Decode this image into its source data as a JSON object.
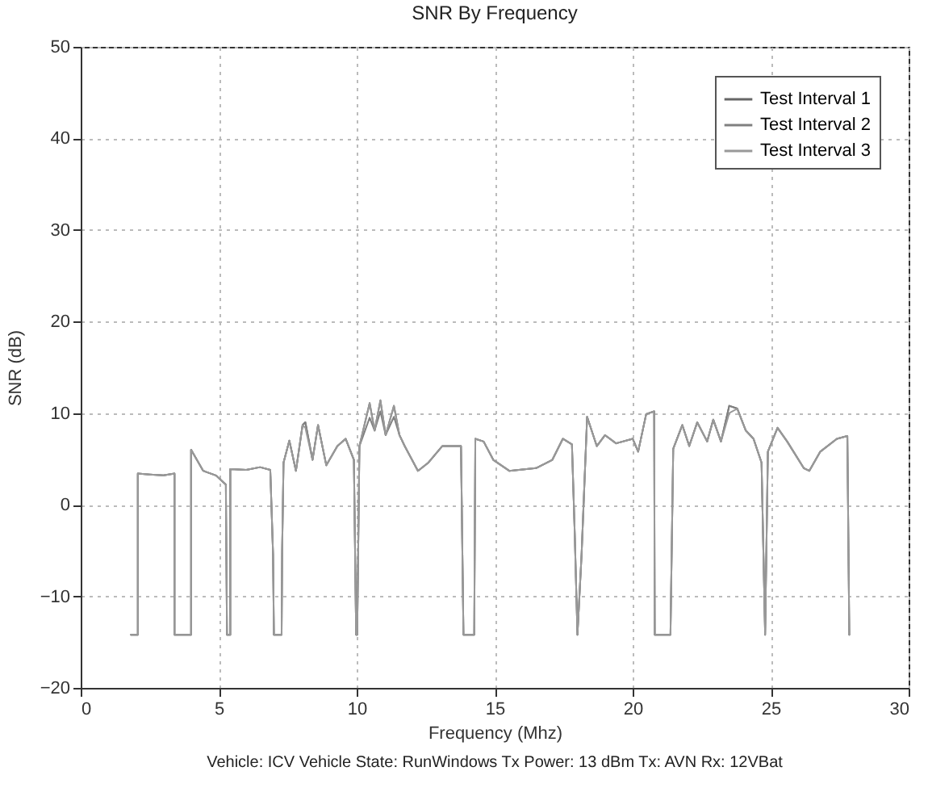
{
  "chart_data": {
    "type": "line",
    "title": "SNR By Frequency",
    "xlabel": "Frequency (Mhz)",
    "ylabel": "SNR (dB)",
    "annotations": [
      "Vehicle: ICV   Vehicle State: RunWindows   Tx Power: 13 dBm   Tx: AVN   Rx: 12VBat"
    ],
    "x": [
      1.82,
      2.07,
      2.07,
      2.5,
      3.0,
      3.4,
      3.4,
      4.0,
      4.0,
      4.44,
      4.9,
      5.26,
      5.3,
      5.42,
      5.42,
      6.0,
      6.5,
      6.87,
      6.97,
      7.0,
      7.28,
      7.3,
      7.35,
      7.56,
      7.8,
      8.04,
      8.14,
      8.4,
      8.6,
      8.9,
      9.3,
      9.6,
      9.9,
      9.98,
      10.02,
      10.1,
      10.47,
      10.65,
      10.86,
      11.05,
      11.35,
      11.55,
      11.74,
      12.22,
      12.6,
      13.1,
      13.78,
      13.87,
      14.26,
      14.3,
      14.6,
      14.95,
      15.53,
      16.5,
      17.09,
      17.47,
      17.8,
      17.9,
      18.0,
      18.15,
      18.35,
      18.7,
      19.0,
      19.4,
      20.0,
      20.2,
      20.49,
      20.78,
      20.8,
      21.37,
      21.47,
      21.8,
      22.05,
      22.34,
      22.7,
      22.92,
      23.2,
      23.5,
      23.79,
      24.1,
      24.38,
      24.67,
      24.8,
      24.9,
      25.25,
      25.6,
      26.2,
      26.4,
      26.8,
      27.4,
      27.78,
      27.85
    ],
    "series": [
      {
        "name": "Test Interval 1",
        "color": "#666666",
        "values": [
          -14.2,
          -14.2,
          3.4,
          3.3,
          3.2,
          3.4,
          -14.2,
          -14.2,
          6.0,
          3.7,
          3.2,
          2.2,
          -14.2,
          -14.2,
          3.9,
          3.8,
          4.1,
          3.8,
          -5.4,
          -14.2,
          -14.2,
          -5,
          4.6,
          7.0,
          3.7,
          8.7,
          9.0,
          4.9,
          8.7,
          4.3,
          6.4,
          7.2,
          4.9,
          -14.2,
          -14.2,
          6.4,
          11.1,
          8.1,
          11.4,
          7.6,
          10.8,
          7.6,
          6.4,
          3.7,
          4.6,
          6.4,
          6.4,
          -14.2,
          -14.2,
          7.2,
          6.9,
          4.9,
          3.7,
          4.0,
          4.9,
          7.2,
          6.6,
          -3.0,
          -14.2,
          -5.4,
          9.6,
          6.4,
          7.6,
          6.7,
          7.2,
          5.8,
          9.9,
          10.2,
          -14.2,
          -14.2,
          6.1,
          8.7,
          6.4,
          9.0,
          6.9,
          9.3,
          6.9,
          10.8,
          10.5,
          8.1,
          7.2,
          4.6,
          -14.2,
          5.8,
          8.4,
          6.9,
          4.0,
          3.7,
          5.8,
          7.2,
          7.5,
          -14.2
        ]
      },
      {
        "name": "Test Interval 2",
        "color": "#808080",
        "values": [
          -14.2,
          -14.2,
          3.4,
          3.3,
          3.2,
          3.4,
          -14.2,
          -14.2,
          6.0,
          3.7,
          3.2,
          2.2,
          -14.2,
          -14.2,
          3.9,
          3.8,
          4.1,
          3.8,
          -5.4,
          -14.2,
          -14.2,
          -5,
          4.6,
          7.0,
          3.7,
          8.7,
          9.0,
          4.9,
          8.7,
          4.3,
          6.4,
          7.2,
          4.9,
          -14.2,
          -14.2,
          6.4,
          9.5,
          8.1,
          10.2,
          7.6,
          9.6,
          7.6,
          6.4,
          3.7,
          4.6,
          6.4,
          6.4,
          -14.2,
          -14.2,
          7.2,
          6.9,
          4.9,
          3.7,
          4.0,
          4.9,
          7.2,
          6.6,
          -3.0,
          -14.2,
          -5.4,
          9.6,
          6.4,
          7.6,
          6.7,
          7.2,
          5.8,
          9.9,
          10.2,
          -14.2,
          -14.2,
          6.1,
          8.7,
          6.4,
          9.0,
          6.9,
          9.3,
          6.9,
          10.8,
          10.5,
          8.1,
          7.2,
          4.6,
          -14.2,
          5.8,
          8.4,
          6.9,
          4.0,
          3.7,
          5.8,
          7.2,
          7.5,
          -14.2
        ]
      },
      {
        "name": "Test Interval 3",
        "color": "#999999",
        "values": [
          -14.2,
          -14.2,
          3.4,
          3.3,
          3.2,
          3.4,
          -14.2,
          -14.2,
          6.0,
          3.7,
          3.2,
          2.2,
          -14.2,
          -14.2,
          3.9,
          3.8,
          4.1,
          3.8,
          -5.4,
          -14.2,
          -14.2,
          -5,
          4.6,
          7.0,
          3.7,
          8.7,
          8.4,
          4.9,
          8.7,
          4.3,
          6.4,
          7.2,
          4.9,
          -14.2,
          -14.2,
          6.4,
          11.1,
          8.1,
          11.4,
          7.6,
          10.8,
          7.6,
          6.4,
          3.7,
          4.6,
          6.4,
          6.4,
          -14.2,
          -14.2,
          7.2,
          6.9,
          4.9,
          3.7,
          4.0,
          4.9,
          7.2,
          6.6,
          -3.0,
          -14.2,
          -5.4,
          9.6,
          6.4,
          7.6,
          6.7,
          7.2,
          5.8,
          9.9,
          10.2,
          -14.2,
          -14.2,
          6.1,
          8.7,
          6.4,
          9.0,
          6.9,
          9.3,
          6.9,
          10.0,
          10.5,
          8.1,
          7.2,
          4.6,
          -14.2,
          5.8,
          8.4,
          6.9,
          4.0,
          3.7,
          5.8,
          7.2,
          7.5,
          -14.2
        ]
      }
    ],
    "xlim": [
      0,
      30
    ],
    "xticks": [
      0,
      5,
      10,
      15,
      20,
      25,
      30
    ],
    "ylim": [
      -20,
      50
    ],
    "yticks": [
      -20,
      -10,
      0,
      10,
      20,
      30,
      40,
      50
    ],
    "grid": true,
    "legend": "top right",
    "line_style": "solid",
    "marker": "none"
  }
}
